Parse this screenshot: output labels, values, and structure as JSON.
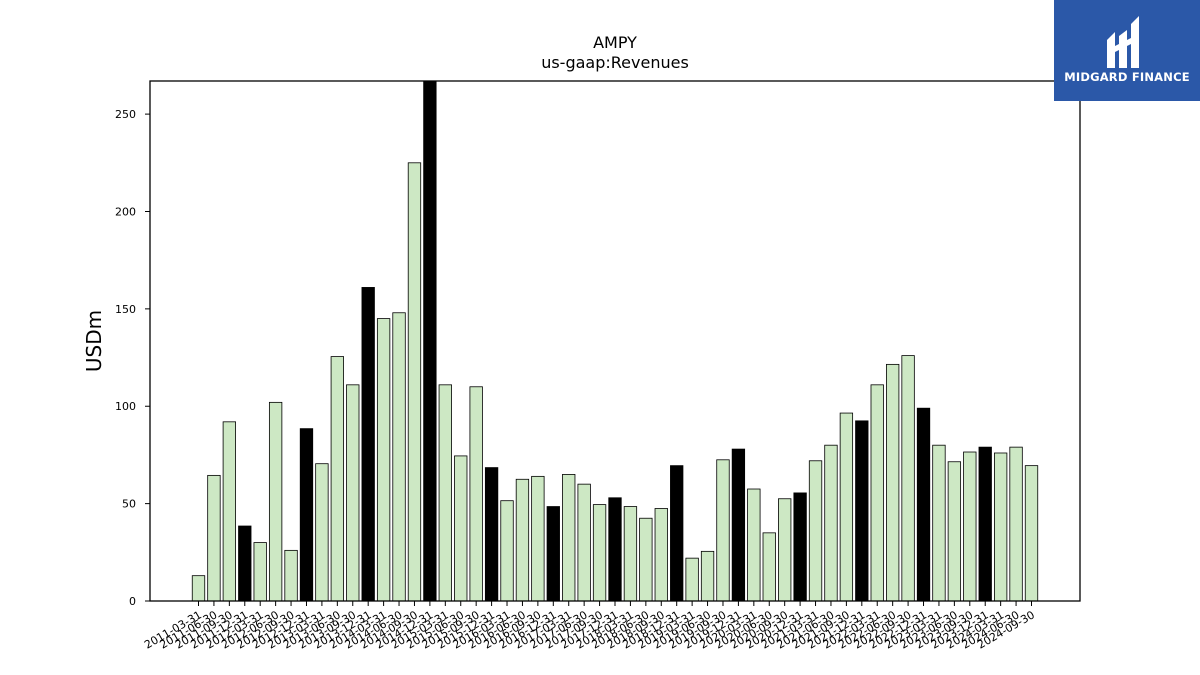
{
  "chart_data": {
    "type": "bar",
    "title": "AMPY",
    "subtitle": "us-gaap:Revenues",
    "xlabel": "",
    "ylabel": "USDm",
    "ylim": [
      0,
      267
    ],
    "yticks": [
      0,
      50,
      100,
      150,
      200,
      250
    ],
    "grid": false,
    "legend": "none",
    "colors": {
      "quarter": "#cde8c4",
      "year_end": "#000000",
      "edge": "#000000"
    },
    "categories": [
      "2011-03-31",
      "2011-06-30",
      "2011-09-30",
      "2011-12-31",
      "2012-03-31",
      "2012-06-30",
      "2012-09-30",
      "2012-12-31",
      "2013-03-31",
      "2013-06-30",
      "2013-09-30",
      "2013-12-31",
      "2014-03-31",
      "2014-06-30",
      "2014-09-30",
      "2014-12-31",
      "2015-03-31",
      "2015-06-30",
      "2015-09-30",
      "2015-12-31",
      "2016-03-31",
      "2016-06-30",
      "2016-09-30",
      "2016-12-31",
      "2017-03-31",
      "2017-06-30",
      "2017-09-30",
      "2017-12-31",
      "2018-03-31",
      "2018-06-30",
      "2018-09-30",
      "2018-12-31",
      "2019-03-31",
      "2019-06-30",
      "2019-09-30",
      "2019-12-31",
      "2020-03-31",
      "2020-06-30",
      "2020-09-30",
      "2020-12-31",
      "2021-03-31",
      "2021-06-30",
      "2021-09-30",
      "2021-12-31",
      "2022-03-31",
      "2022-06-30",
      "2022-09-30",
      "2022-12-31",
      "2023-03-31",
      "2023-06-30",
      "2023-09-30",
      "2023-12-31",
      "2024-03-31",
      "2024-06-30",
      "2024-09-30"
    ],
    "values": [
      13,
      64.5,
      92,
      38.5,
      30,
      102,
      26,
      88.5,
      70.5,
      125.5,
      111,
      161,
      145,
      148,
      225,
      267,
      111,
      74.5,
      110,
      68.5,
      51.5,
      62.5,
      64,
      48.5,
      65,
      60,
      49.5,
      53,
      48.5,
      42.5,
      47.5,
      69.5,
      22,
      25.5,
      72.5,
      78,
      57.5,
      35,
      52.5,
      55.5,
      72,
      80,
      96.5,
      92.5,
      111,
      121.5,
      126,
      99,
      80,
      71.5,
      76.5,
      79,
      76,
      79,
      69.5
    ],
    "year_end_indices": [
      3,
      7,
      11,
      15,
      19,
      23,
      27,
      31,
      35,
      39,
      43,
      47,
      51
    ]
  },
  "logo": {
    "text": "MIDGARD FINANCE",
    "background": "#2b58a8"
  }
}
